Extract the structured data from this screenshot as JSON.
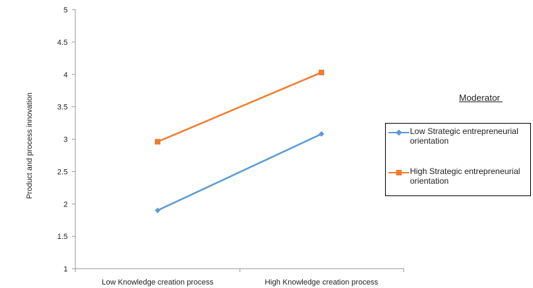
{
  "chart_data": {
    "type": "line",
    "categories": [
      "Low Knowledge creation process",
      "High Knowledge creation process"
    ],
    "series": [
      {
        "name": "Low Strategic entrepreneurial orientation",
        "values": [
          1.9,
          3.08
        ],
        "color": "#5b9bd5",
        "marker": "diamond"
      },
      {
        "name": "High Strategic entrepreneurial orientation",
        "values": [
          2.96,
          4.03
        ],
        "color": "#ed7d31",
        "marker": "square"
      }
    ],
    "ylabel": "Product and process innovation",
    "xlabel": "",
    "ylim": [
      1,
      5
    ],
    "yticks": [
      "1",
      "1.5",
      "2",
      "2.5",
      "3",
      "3.5",
      "4",
      "4.5",
      "5"
    ],
    "legend_title": "Moderator ",
    "legend_position": "right",
    "grid": false
  }
}
